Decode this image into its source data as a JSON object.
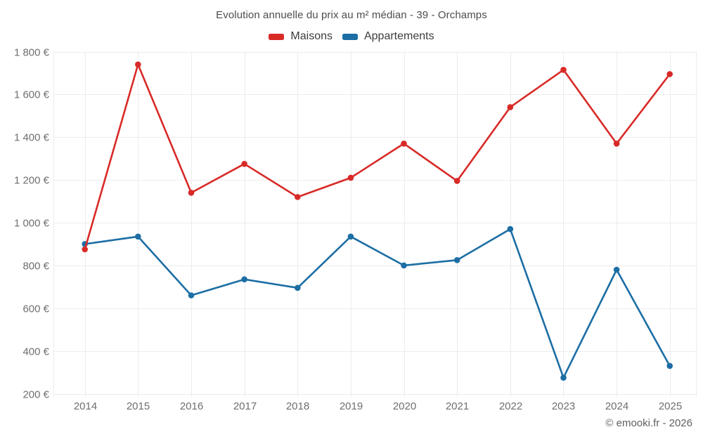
{
  "title": "Evolution annuelle du prix au m² médian - 39 - Orchamps",
  "legend": {
    "items": [
      {
        "label": "Maisons",
        "color": "#d82a27"
      },
      {
        "label": "Appartements",
        "color": "#1c6ea4"
      }
    ]
  },
  "footer": {
    "credit": "© emooki.fr - 2026"
  },
  "colors": {
    "maisons": "#d82a27",
    "appartements": "#1c6ea4",
    "grid": "#ececec",
    "tick": "#dcdcdc",
    "axis_text": "#6f6f6f",
    "title_text": "#4d4d4d"
  },
  "chart_data": {
    "type": "line",
    "title": "Evolution annuelle du prix au m² médian - 39 - Orchamps",
    "x": [
      "2014",
      "2015",
      "2016",
      "2017",
      "2018",
      "2019",
      "2020",
      "2021",
      "2022",
      "2023",
      "2024",
      "2025"
    ],
    "series": [
      {
        "name": "Maisons",
        "color": "#d82a27",
        "values": [
          875,
          1740,
          1140,
          1275,
          1120,
          1210,
          1370,
          1195,
          1540,
          1715,
          1370,
          1695
        ]
      },
      {
        "name": "Appartements",
        "color": "#1c6ea4",
        "values": [
          900,
          935,
          660,
          735,
          695,
          935,
          800,
          825,
          970,
          275,
          780,
          330
        ]
      }
    ],
    "xlabel": "",
    "ylabel": "",
    "ylim": [
      200,
      1800
    ],
    "yticks": [
      {
        "value": 200,
        "label": "200 €"
      },
      {
        "value": 400,
        "label": "400 €"
      },
      {
        "value": 600,
        "label": "600 €"
      },
      {
        "value": 800,
        "label": "800 €"
      },
      {
        "value": 1000,
        "label": "1 000 €"
      },
      {
        "value": 1200,
        "label": "1 200 €"
      },
      {
        "value": 1400,
        "label": "1 400 €"
      },
      {
        "value": 1600,
        "label": "1 600 €"
      },
      {
        "value": 1800,
        "label": "1 800 €"
      }
    ],
    "grid": true,
    "legend_position": "top",
    "unit": "€"
  }
}
